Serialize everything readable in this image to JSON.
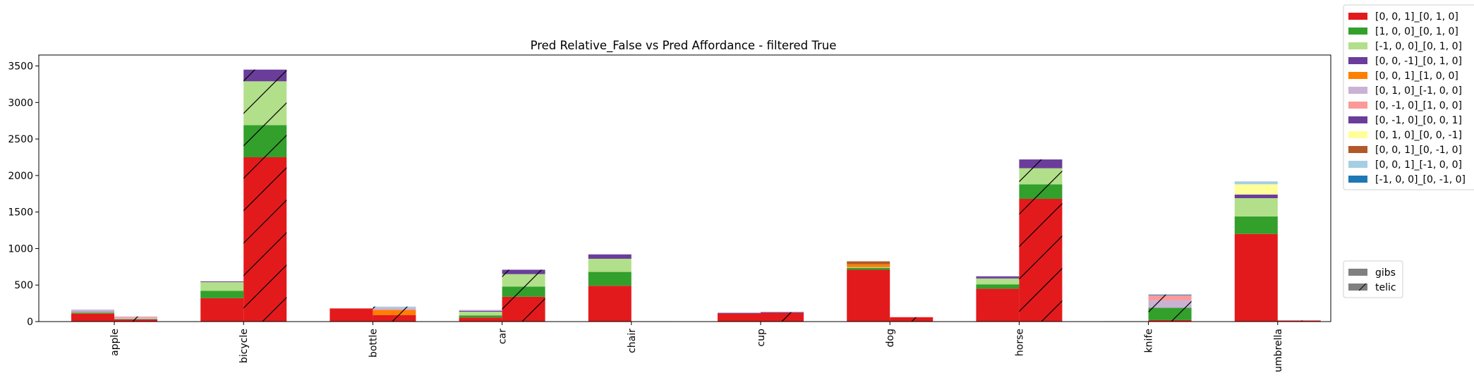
{
  "chart_data": {
    "type": "bar",
    "stacked": true,
    "title": "Pred Relative_False vs Pred Affordance - filtered True",
    "xlabel": "",
    "ylabel": "",
    "ylim": [
      0,
      3650
    ],
    "yticks": [
      0,
      500,
      1000,
      1500,
      2000,
      2500,
      3000,
      3500
    ],
    "grid": false,
    "legend_placement": "right",
    "categories": [
      "apple",
      "bicycle",
      "bottle",
      "car",
      "chair",
      "cup",
      "dog",
      "horse",
      "knife",
      "umbrella"
    ],
    "groups": [
      {
        "name": "gibs",
        "hatch": false
      },
      {
        "name": "telic",
        "hatch": true
      }
    ],
    "series": [
      {
        "name": "[0, 0, 1]_[0, 1, 0]",
        "color": "#e31a1c",
        "gibs": [
          110,
          320,
          180,
          55,
          490,
          110,
          710,
          450,
          5,
          1200
        ],
        "telic": [
          30,
          2250,
          90,
          340,
          5,
          120,
          60,
          1680,
          20,
          15
        ]
      },
      {
        "name": "[1, 0, 0]_[0, 1, 0]",
        "color": "#33a02c",
        "gibs": [
          10,
          100,
          0,
          30,
          190,
          0,
          25,
          60,
          0,
          240
        ],
        "telic": [
          5,
          440,
          0,
          140,
          0,
          0,
          0,
          200,
          170,
          0
        ]
      },
      {
        "name": "[-1, 0, 0]_[0, 1, 0]",
        "color": "#b2df8a",
        "gibs": [
          10,
          120,
          0,
          50,
          180,
          0,
          10,
          80,
          0,
          250
        ],
        "telic": [
          5,
          600,
          0,
          170,
          0,
          0,
          0,
          220,
          0,
          0
        ]
      },
      {
        "name": "[0, 0, -1]_[0, 1, 0]",
        "color": "#6a3d9a",
        "gibs": [
          5,
          10,
          0,
          10,
          60,
          10,
          0,
          10,
          0,
          50
        ],
        "telic": [
          0,
          160,
          0,
          60,
          0,
          10,
          0,
          120,
          0,
          0
        ]
      },
      {
        "name": "[0, 0, 1]_[1, 0, 0]",
        "color": "#ff7f00",
        "gibs": [
          0,
          0,
          0,
          0,
          0,
          0,
          40,
          0,
          0,
          0
        ],
        "telic": [
          0,
          0,
          70,
          0,
          0,
          0,
          0,
          0,
          0,
          0
        ]
      },
      {
        "name": "[0, 1, 0]_[-1, 0, 0]",
        "color": "#cab2d6",
        "gibs": [
          30,
          0,
          0,
          15,
          0,
          0,
          0,
          0,
          0,
          0
        ],
        "telic": [
          20,
          0,
          30,
          0,
          0,
          0,
          0,
          0,
          100,
          0
        ]
      },
      {
        "name": "[0, -1, 0]_[1, 0, 0]",
        "color": "#fb9a99",
        "gibs": [
          0,
          0,
          0,
          0,
          0,
          0,
          0,
          0,
          0,
          0
        ],
        "telic": [
          10,
          0,
          0,
          0,
          0,
          0,
          0,
          0,
          70,
          0
        ]
      },
      {
        "name": "[0, -1, 0]_[0, 0, 1]",
        "color": "#6a3d9a",
        "gibs": [
          0,
          0,
          0,
          0,
          0,
          0,
          0,
          20,
          0,
          0
        ],
        "telic": [
          0,
          0,
          0,
          0,
          0,
          0,
          0,
          0,
          0,
          0
        ]
      },
      {
        "name": "[0, 1, 0]_[0, 0, -1]",
        "color": "#ffff99",
        "gibs": [
          0,
          0,
          0,
          0,
          0,
          0,
          0,
          0,
          0,
          140
        ],
        "telic": [
          0,
          0,
          0,
          0,
          0,
          0,
          0,
          0,
          0,
          0
        ]
      },
      {
        "name": "[0, 0, 1]_[0, -1, 0]",
        "color": "#b15928",
        "gibs": [
          0,
          0,
          0,
          0,
          0,
          0,
          40,
          0,
          0,
          0
        ],
        "telic": [
          0,
          0,
          0,
          0,
          0,
          0,
          0,
          0,
          0,
          0
        ]
      },
      {
        "name": "[0, 0, 1]_[-1, 0, 0]",
        "color": "#a6cee3",
        "gibs": [
          0,
          0,
          0,
          0,
          0,
          0,
          0,
          0,
          0,
          40
        ],
        "telic": [
          0,
          0,
          15,
          0,
          0,
          0,
          0,
          0,
          0,
          0
        ]
      },
      {
        "name": "[-1, 0, 0]_[0, -1, 0]",
        "color": "#1f78b4",
        "gibs": [
          0,
          0,
          0,
          0,
          0,
          0,
          0,
          0,
          0,
          0
        ],
        "telic": [
          0,
          0,
          0,
          0,
          0,
          0,
          0,
          0,
          10,
          0
        ]
      }
    ]
  }
}
